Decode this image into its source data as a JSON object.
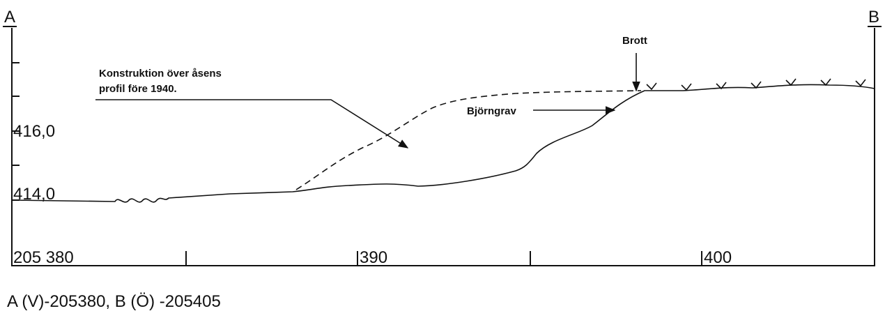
{
  "labels": {
    "left_end": "A",
    "right_end": "B",
    "level_upper": "416,0",
    "level_lower": "414,0",
    "x_start": "205 380",
    "x_mid": "390",
    "x_end": "400"
  },
  "annotations": {
    "construction": [
      "Konstruktion över åsens",
      "profil före 1940."
    ],
    "bear_pit": "Björngrav",
    "break": "Brott"
  },
  "caption": "A (V)-205380,  B (Ö) -205405"
}
